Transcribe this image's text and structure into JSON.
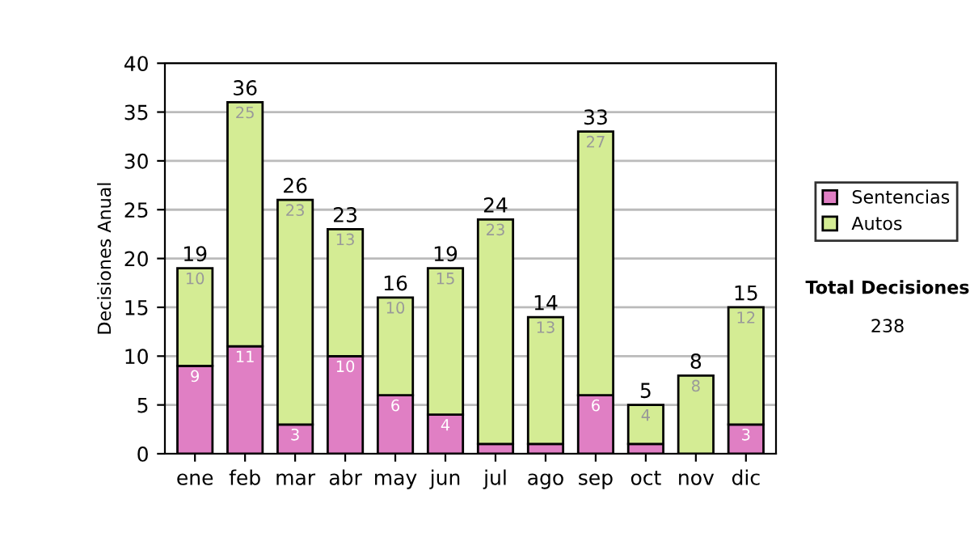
{
  "chart_data": {
    "type": "bar",
    "ylabel": "Decisiones Anual",
    "categories": [
      "ene",
      "feb",
      "mar",
      "abr",
      "may",
      "jun",
      "jul",
      "ago",
      "sep",
      "oct",
      "nov",
      "dic"
    ],
    "series": [
      {
        "name": "Sentencias",
        "color": "#e07fc4",
        "values": [
          9,
          11,
          3,
          10,
          6,
          4,
          1,
          1,
          6,
          1,
          0,
          3
        ],
        "value_labels": [
          "9",
          "11",
          "3",
          "10",
          "6",
          "4",
          null,
          null,
          "6",
          null,
          null,
          "3"
        ]
      },
      {
        "name": "Autos",
        "color": "#d4ec94",
        "values": [
          10,
          25,
          23,
          13,
          10,
          15,
          23,
          13,
          27,
          4,
          8,
          12
        ],
        "value_labels": [
          "10",
          "25",
          "23",
          "13",
          "10",
          "15",
          "23",
          "13",
          "27",
          "4",
          "8",
          "12"
        ]
      }
    ],
    "stacked": true,
    "totals": [
      "19",
      "36",
      "26",
      "23",
      "16",
      "19",
      "24",
      "14",
      "33",
      "5",
      "8",
      "15"
    ],
    "ylim": [
      0,
      40
    ],
    "yticks": [
      0,
      5,
      10,
      15,
      20,
      25,
      30,
      35,
      40
    ],
    "grid": "y",
    "legend": "right",
    "annotations": [
      "Total Decisiones",
      "238"
    ]
  }
}
